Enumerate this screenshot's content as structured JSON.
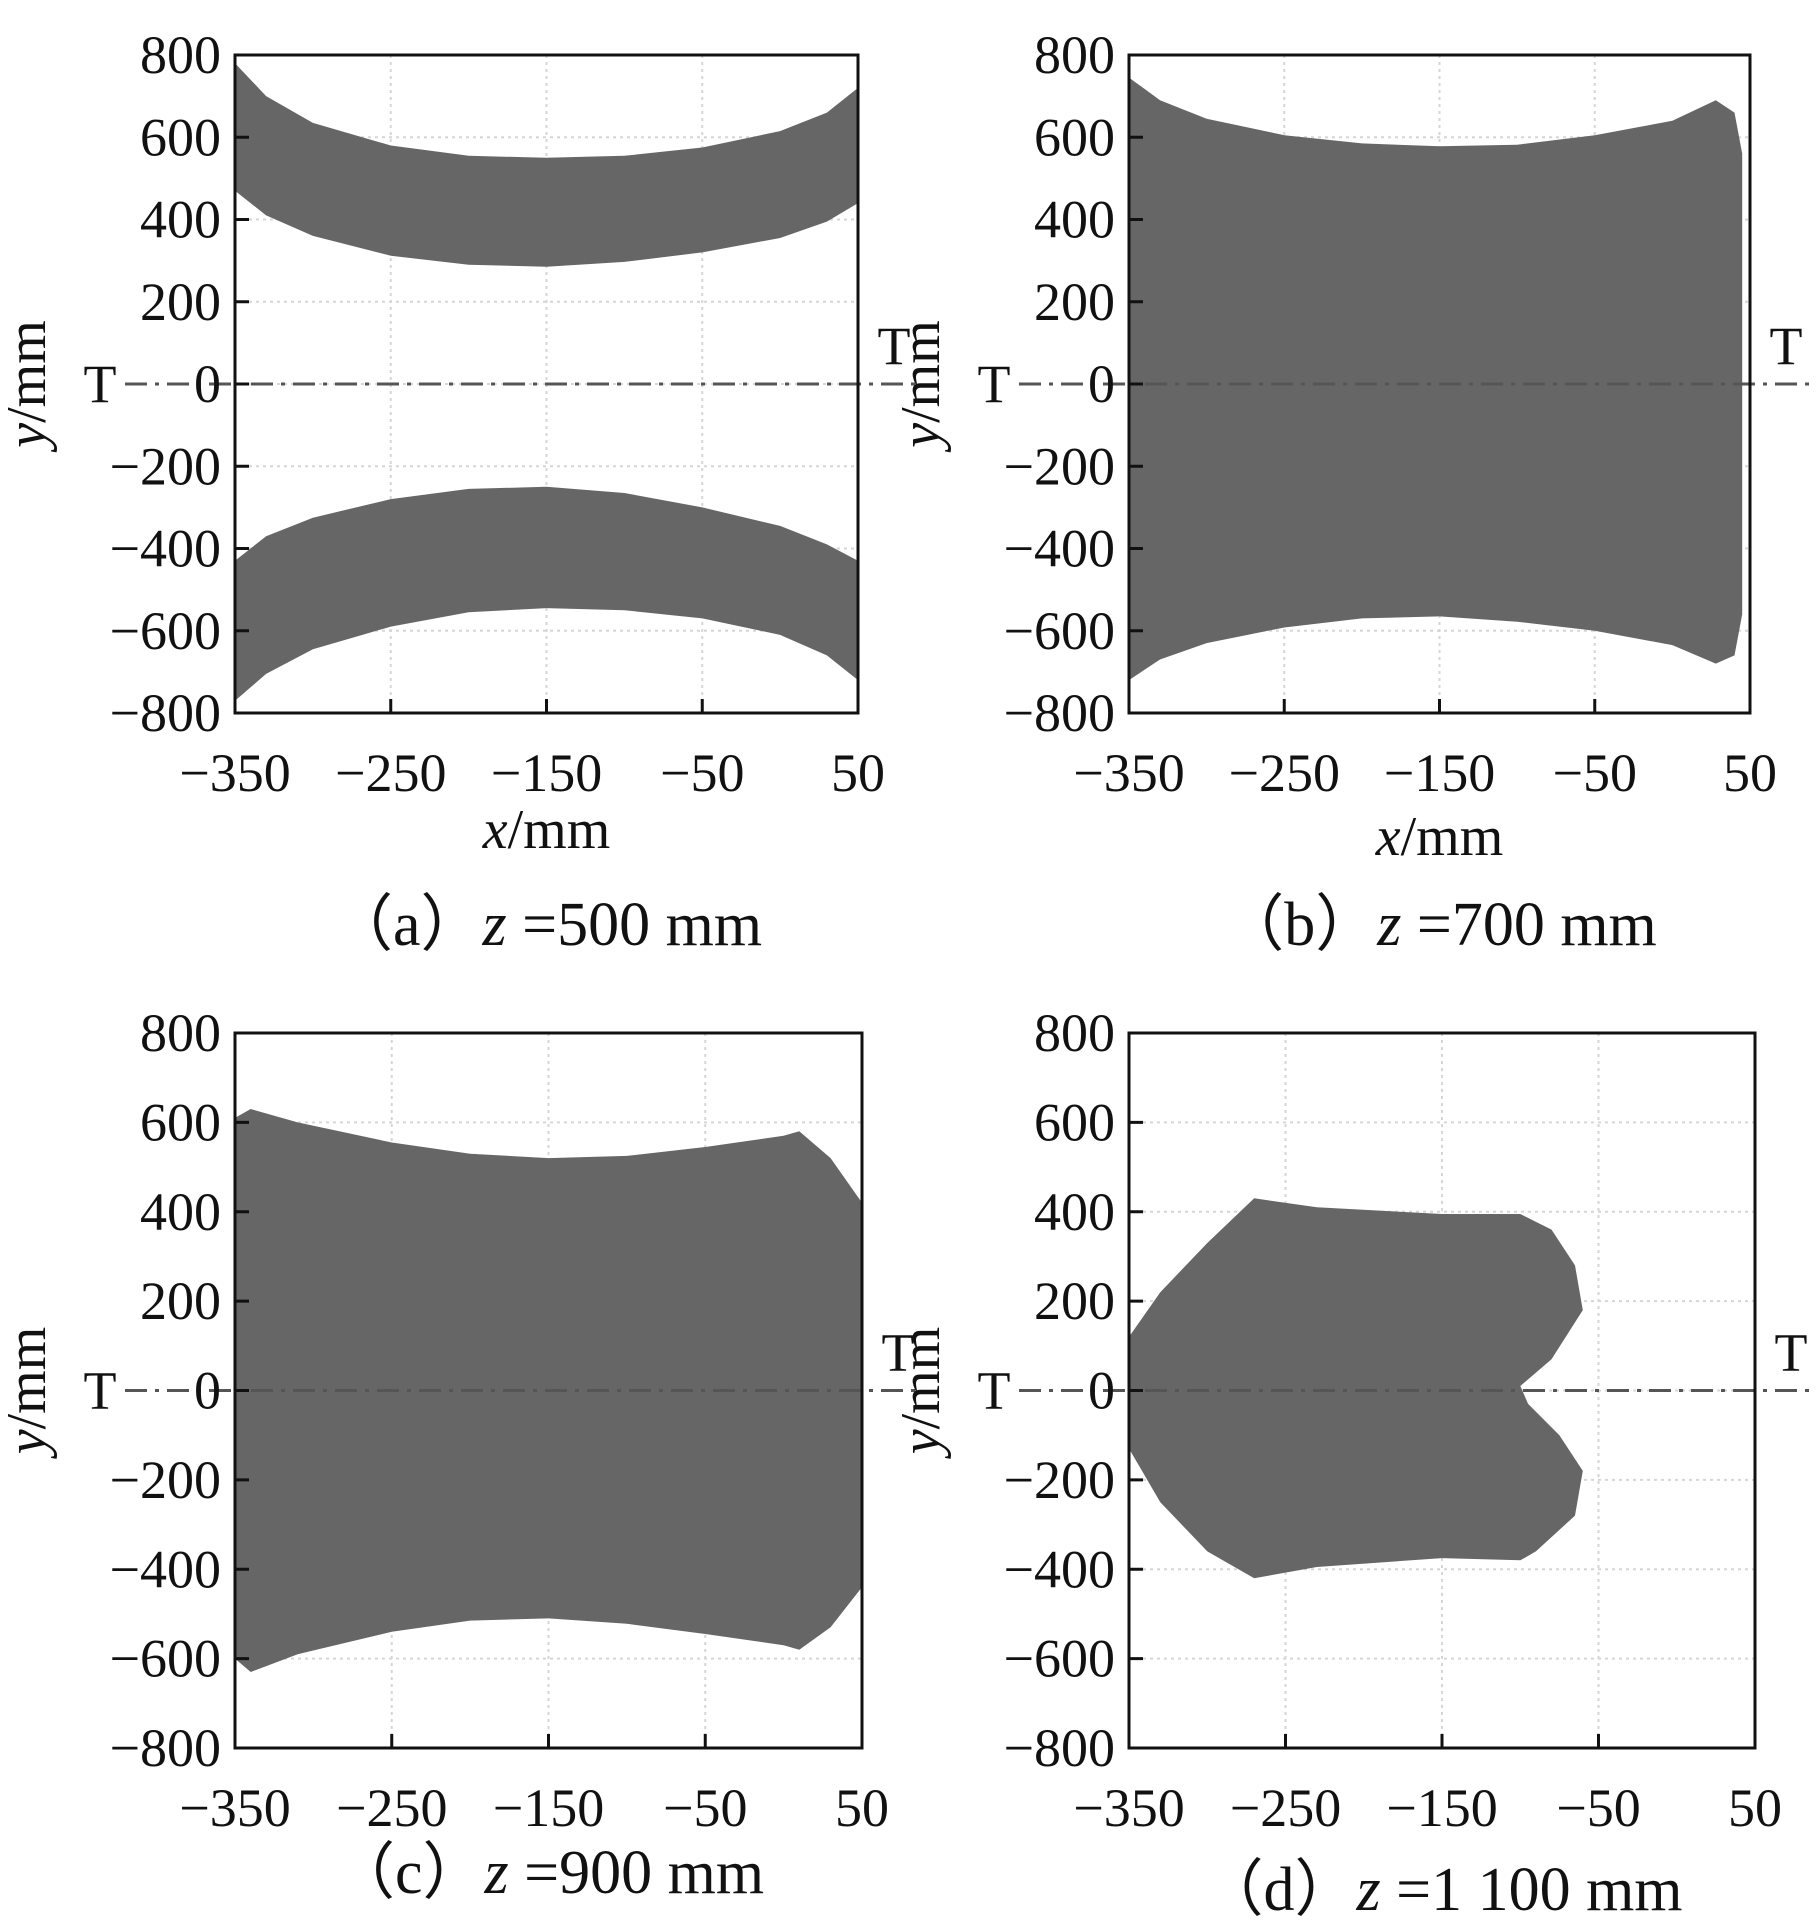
{
  "chart_data": [
    {
      "type": "area",
      "caption": {
        "label": "（a）",
        "var": "z",
        "eq": " =500 mm"
      },
      "xlabel": {
        "var": "x",
        "unit": "/mm"
      },
      "ylabel": {
        "var": "y",
        "unit": "/mm"
      },
      "xlim": [
        -350,
        50
      ],
      "ylim": [
        -800,
        800
      ],
      "xticks": [
        "−350",
        "−250",
        "−150",
        "−50",
        "50"
      ],
      "yticks": [
        "800",
        "600",
        "400",
        "200",
        "0",
        "−200",
        "−400",
        "−600",
        "−800"
      ],
      "grid": true,
      "axis_marker": "T",
      "fill_color": "#666666",
      "regions": [
        {
          "outline": [
            [
              -350,
              780
            ],
            [
              -330,
              700
            ],
            [
              -300,
              635
            ],
            [
              -250,
              580
            ],
            [
              -200,
              555
            ],
            [
              -150,
              550
            ],
            [
              -100,
              555
            ],
            [
              -50,
              575
            ],
            [
              0,
              615
            ],
            [
              30,
              660
            ],
            [
              50,
              720
            ],
            [
              50,
              440
            ],
            [
              30,
              395
            ],
            [
              0,
              355
            ],
            [
              -50,
              320
            ],
            [
              -100,
              297
            ],
            [
              -150,
              285
            ],
            [
              -200,
              290
            ],
            [
              -250,
              312
            ],
            [
              -300,
              360
            ],
            [
              -330,
              410
            ],
            [
              -350,
              470
            ]
          ]
        },
        {
          "outline": [
            [
              -350,
              -770
            ],
            [
              -330,
              -705
            ],
            [
              -300,
              -645
            ],
            [
              -250,
              -590
            ],
            [
              -200,
              -555
            ],
            [
              -150,
              -545
            ],
            [
              -100,
              -550
            ],
            [
              -50,
              -570
            ],
            [
              0,
              -610
            ],
            [
              30,
              -660
            ],
            [
              50,
              -720
            ],
            [
              50,
              -430
            ],
            [
              30,
              -390
            ],
            [
              0,
              -345
            ],
            [
              -50,
              -300
            ],
            [
              -100,
              -265
            ],
            [
              -150,
              -250
            ],
            [
              -200,
              -255
            ],
            [
              -250,
              -280
            ],
            [
              -300,
              -325
            ],
            [
              -330,
              -370
            ],
            [
              -350,
              -430
            ]
          ]
        }
      ]
    },
    {
      "type": "area",
      "caption": {
        "label": "（b）",
        "var": "z",
        "eq": " =700 mm"
      },
      "xlabel": {
        "var": "x",
        "unit": "/mm"
      },
      "ylabel": {
        "var": "y",
        "unit": "/mm"
      },
      "xlim": [
        -350,
        50
      ],
      "ylim": [
        -800,
        800
      ],
      "xticks": [
        "−350",
        "−250",
        "−150",
        "−50",
        "50"
      ],
      "yticks": [
        "800",
        "600",
        "400",
        "200",
        "0",
        "−200",
        "−400",
        "−600",
        "−800"
      ],
      "grid": true,
      "axis_marker": "T",
      "fill_color": "#666666",
      "regions": [
        {
          "outline": [
            [
              -350,
              745
            ],
            [
              -330,
              690
            ],
            [
              -300,
              645
            ],
            [
              -250,
              605
            ],
            [
              -200,
              585
            ],
            [
              -150,
              578
            ],
            [
              -100,
              582
            ],
            [
              -50,
              605
            ],
            [
              0,
              640
            ],
            [
              28,
              690
            ],
            [
              40,
              660
            ],
            [
              45,
              560
            ],
            [
              45,
              -560
            ],
            [
              40,
              -660
            ],
            [
              28,
              -680
            ],
            [
              0,
              -635
            ],
            [
              -50,
              -600
            ],
            [
              -100,
              -578
            ],
            [
              -150,
              -565
            ],
            [
              -200,
              -570
            ],
            [
              -250,
              -592
            ],
            [
              -300,
              -630
            ],
            [
              -330,
              -670
            ],
            [
              -350,
              -720
            ]
          ]
        }
      ]
    },
    {
      "type": "area",
      "caption": {
        "label": "（c）",
        "var": "z",
        "eq": " =900 mm"
      },
      "xlabel": null,
      "ylabel": {
        "var": "y",
        "unit": "/mm"
      },
      "xlim": [
        -350,
        50
      ],
      "ylim": [
        -800,
        800
      ],
      "xticks": [
        "−350",
        "−250",
        "−150",
        "−50",
        "50"
      ],
      "yticks": [
        "800",
        "600",
        "400",
        "200",
        "0",
        "−200",
        "−400",
        "−600",
        "−800"
      ],
      "grid": true,
      "axis_marker": "T",
      "fill_color": "#666666",
      "regions": [
        {
          "outline": [
            [
              -350,
              610
            ],
            [
              -340,
              630
            ],
            [
              -310,
              600
            ],
            [
              -250,
              555
            ],
            [
              -200,
              530
            ],
            [
              -150,
              520
            ],
            [
              -100,
              525
            ],
            [
              -50,
              545
            ],
            [
              0,
              570
            ],
            [
              10,
              580
            ],
            [
              30,
              520
            ],
            [
              50,
              420
            ],
            [
              50,
              -440
            ],
            [
              30,
              -530
            ],
            [
              10,
              -580
            ],
            [
              0,
              -570
            ],
            [
              -50,
              -545
            ],
            [
              -100,
              -522
            ],
            [
              -150,
              -510
            ],
            [
              -200,
              -515
            ],
            [
              -250,
              -540
            ],
            [
              -310,
              -590
            ],
            [
              -340,
              -630
            ],
            [
              -350,
              -600
            ]
          ]
        }
      ]
    },
    {
      "type": "area",
      "caption": {
        "label": "（d）",
        "var": "z",
        "eq": " =1 100 mm"
      },
      "xlabel": null,
      "ylabel": {
        "var": "y",
        "unit": "/mm"
      },
      "xlim": [
        -350,
        50
      ],
      "ylim": [
        -800,
        800
      ],
      "xticks": [
        "−350",
        "−250",
        "−150",
        "−50",
        "50"
      ],
      "yticks": [
        "800",
        "600",
        "400",
        "200",
        "0",
        "−200",
        "−400",
        "−600",
        "−800"
      ],
      "grid": true,
      "axis_marker": "T",
      "fill_color": "#666666",
      "regions": [
        {
          "outline": [
            [
              -350,
              120
            ],
            [
              -330,
              220
            ],
            [
              -300,
              330
            ],
            [
              -270,
              430
            ],
            [
              -230,
              410
            ],
            [
              -150,
              395
            ],
            [
              -100,
              395
            ],
            [
              -80,
              360
            ],
            [
              -65,
              280
            ],
            [
              -60,
              180
            ],
            [
              -80,
              70
            ],
            [
              -100,
              10
            ],
            [
              -95,
              -30
            ],
            [
              -75,
              -100
            ],
            [
              -60,
              -180
            ],
            [
              -65,
              -280
            ],
            [
              -90,
              -360
            ],
            [
              -100,
              -380
            ],
            [
              -150,
              -375
            ],
            [
              -230,
              -395
            ],
            [
              -270,
              -420
            ],
            [
              -300,
              -360
            ],
            [
              -330,
              -250
            ],
            [
              -350,
              -130
            ]
          ]
        }
      ]
    }
  ]
}
